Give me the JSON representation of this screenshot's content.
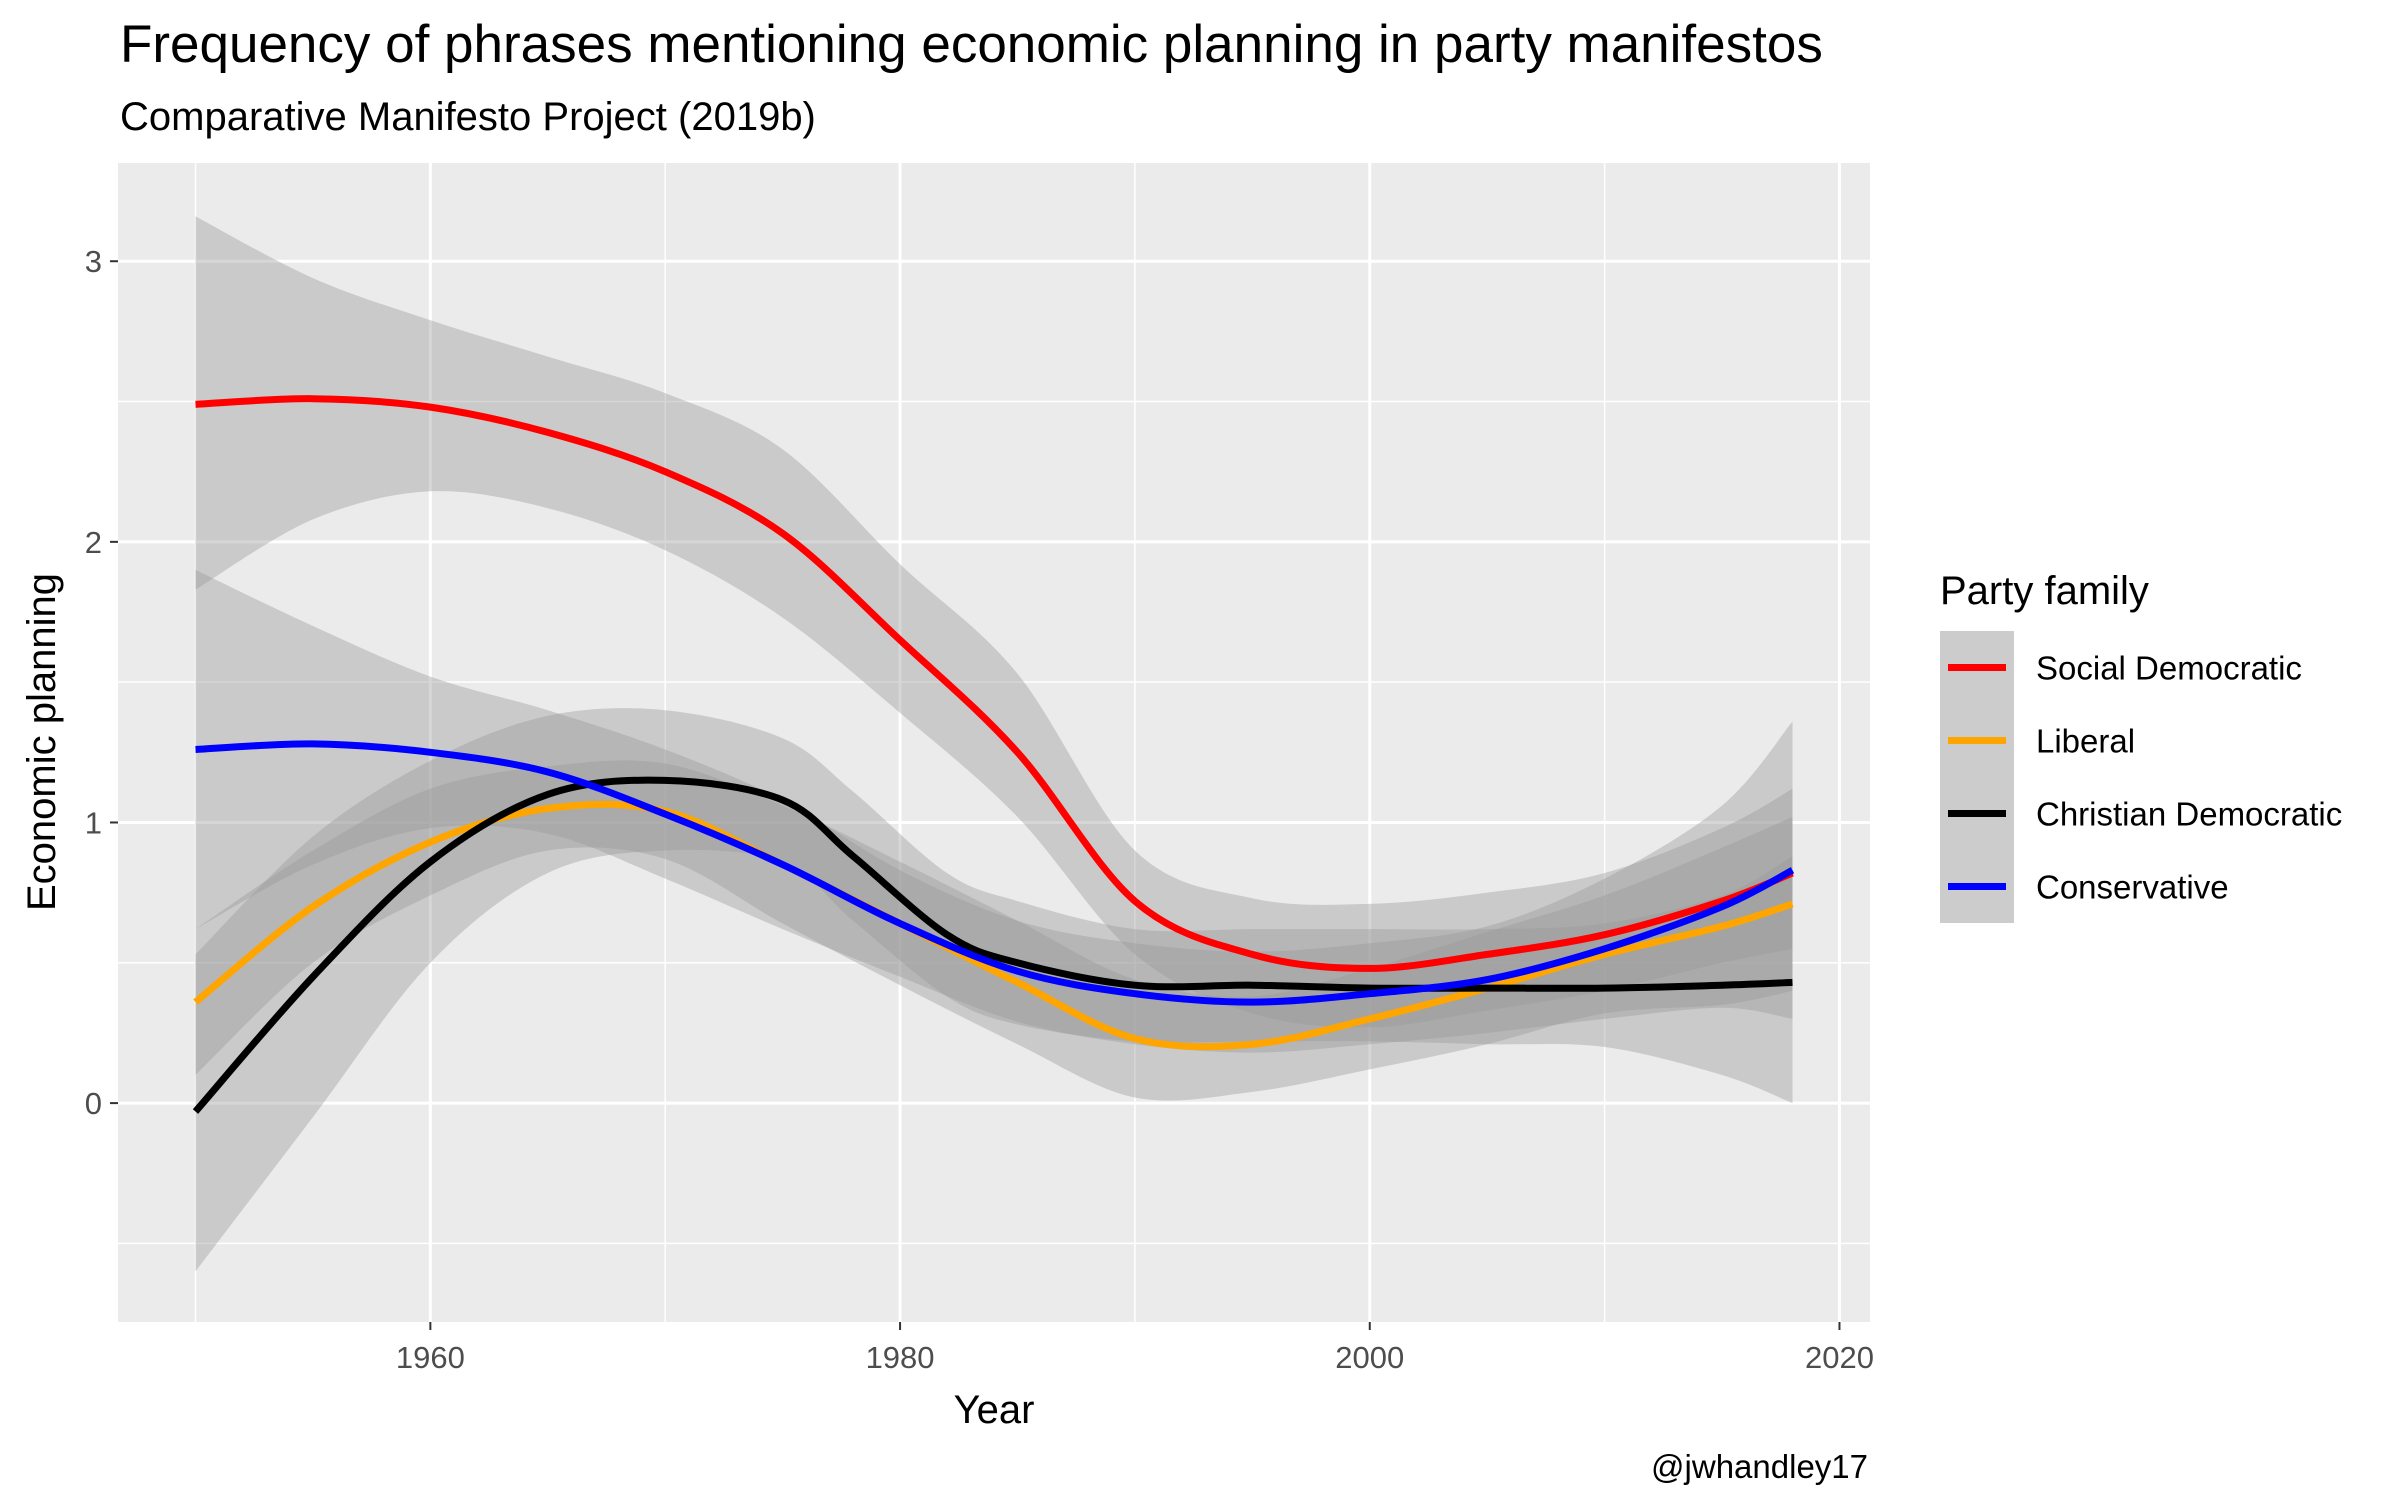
{
  "chart_data": {
    "type": "line",
    "title": "Frequency of phrases mentioning economic planning in party manifestos",
    "subtitle": "Comparative Manifesto Project (2019b)",
    "xlabel": "Year",
    "ylabel": "Economic planning",
    "caption": "@jwhandley17",
    "xlim": [
      1946.7,
      2021.3
    ],
    "ylim": [
      -0.78,
      3.35
    ],
    "x_ticks": [
      1960,
      1980,
      2000,
      2020
    ],
    "x_minor": [
      1950,
      1970,
      1990,
      2010
    ],
    "y_ticks": [
      0,
      1,
      2,
      3
    ],
    "y_minor": [
      -0.5,
      0.5,
      1.5,
      2.5
    ],
    "grid": true,
    "legend": {
      "title": "Party family",
      "placement": "right"
    },
    "series": [
      {
        "name": "Social Democratic",
        "color": "#ff0000",
        "x": [
          1950,
          1955,
          1960,
          1965,
          1970,
          1975,
          1980,
          1985,
          1990,
          1995,
          2000,
          2005,
          2010,
          2015,
          2018
        ],
        "y": [
          2.49,
          2.51,
          2.48,
          2.39,
          2.25,
          2.03,
          1.65,
          1.25,
          0.72,
          0.53,
          0.48,
          0.53,
          0.6,
          0.72,
          0.82
        ],
        "lower": [
          1.83,
          2.08,
          2.18,
          2.12,
          1.97,
          1.73,
          1.39,
          1.02,
          0.53,
          0.32,
          0.27,
          0.33,
          0.4,
          0.5,
          0.55
        ],
        "upper": [
          3.16,
          2.94,
          2.79,
          2.66,
          2.53,
          2.33,
          1.92,
          1.53,
          0.9,
          0.73,
          0.71,
          0.75,
          0.82,
          0.98,
          1.12
        ]
      },
      {
        "name": "Liberal",
        "color": "#ffa500",
        "x": [
          1950,
          1955,
          1960,
          1965,
          1970,
          1975,
          1980,
          1985,
          1990,
          1995,
          2000,
          2005,
          2010,
          2015,
          2018
        ],
        "y": [
          0.36,
          0.7,
          0.93,
          1.05,
          1.04,
          0.85,
          0.64,
          0.43,
          0.23,
          0.21,
          0.3,
          0.41,
          0.53,
          0.63,
          0.71
        ],
        "lower": [
          0.1,
          0.5,
          0.74,
          0.9,
          0.87,
          0.64,
          0.42,
          0.21,
          0.02,
          0.04,
          0.12,
          0.21,
          0.32,
          0.35,
          0.4
        ],
        "upper": [
          0.62,
          0.9,
          1.12,
          1.2,
          1.21,
          1.06,
          0.86,
          0.65,
          0.44,
          0.38,
          0.48,
          0.61,
          0.74,
          0.91,
          1.02
        ]
      },
      {
        "name": "Christian Democratic",
        "color": "#000000",
        "x": [
          1950,
          1955,
          1960,
          1965,
          1970,
          1975,
          1978,
          1982,
          1985,
          1990,
          1995,
          2000,
          2005,
          2010,
          2015,
          2018
        ],
        "y": [
          -0.03,
          0.45,
          0.86,
          1.1,
          1.15,
          1.08,
          0.88,
          0.6,
          0.5,
          0.42,
          0.42,
          0.41,
          0.41,
          0.41,
          0.42,
          0.43
        ],
        "lower": [
          -0.6,
          -0.05,
          0.5,
          0.82,
          0.9,
          0.86,
          0.65,
          0.38,
          0.28,
          0.22,
          0.22,
          0.22,
          0.21,
          0.2,
          0.1,
          0.0
        ],
        "upper": [
          0.53,
          0.95,
          1.22,
          1.38,
          1.4,
          1.3,
          1.11,
          0.82,
          0.72,
          0.62,
          0.62,
          0.62,
          0.62,
          0.64,
          0.74,
          0.88
        ]
      },
      {
        "name": "Conservative",
        "color": "#0000ff",
        "x": [
          1950,
          1955,
          1960,
          1965,
          1970,
          1975,
          1980,
          1985,
          1990,
          1995,
          2000,
          2005,
          2010,
          2015,
          2018
        ],
        "y": [
          1.26,
          1.28,
          1.25,
          1.18,
          1.03,
          0.85,
          0.64,
          0.47,
          0.39,
          0.36,
          0.39,
          0.44,
          0.55,
          0.7,
          0.83
        ],
        "lower": [
          0.62,
          0.85,
          0.98,
          0.96,
          0.8,
          0.62,
          0.45,
          0.29,
          0.21,
          0.18,
          0.21,
          0.25,
          0.3,
          0.34,
          0.3
        ],
        "upper": [
          1.9,
          1.7,
          1.52,
          1.4,
          1.26,
          1.08,
          0.83,
          0.65,
          0.57,
          0.54,
          0.57,
          0.63,
          0.8,
          1.06,
          1.36
        ]
      }
    ]
  }
}
